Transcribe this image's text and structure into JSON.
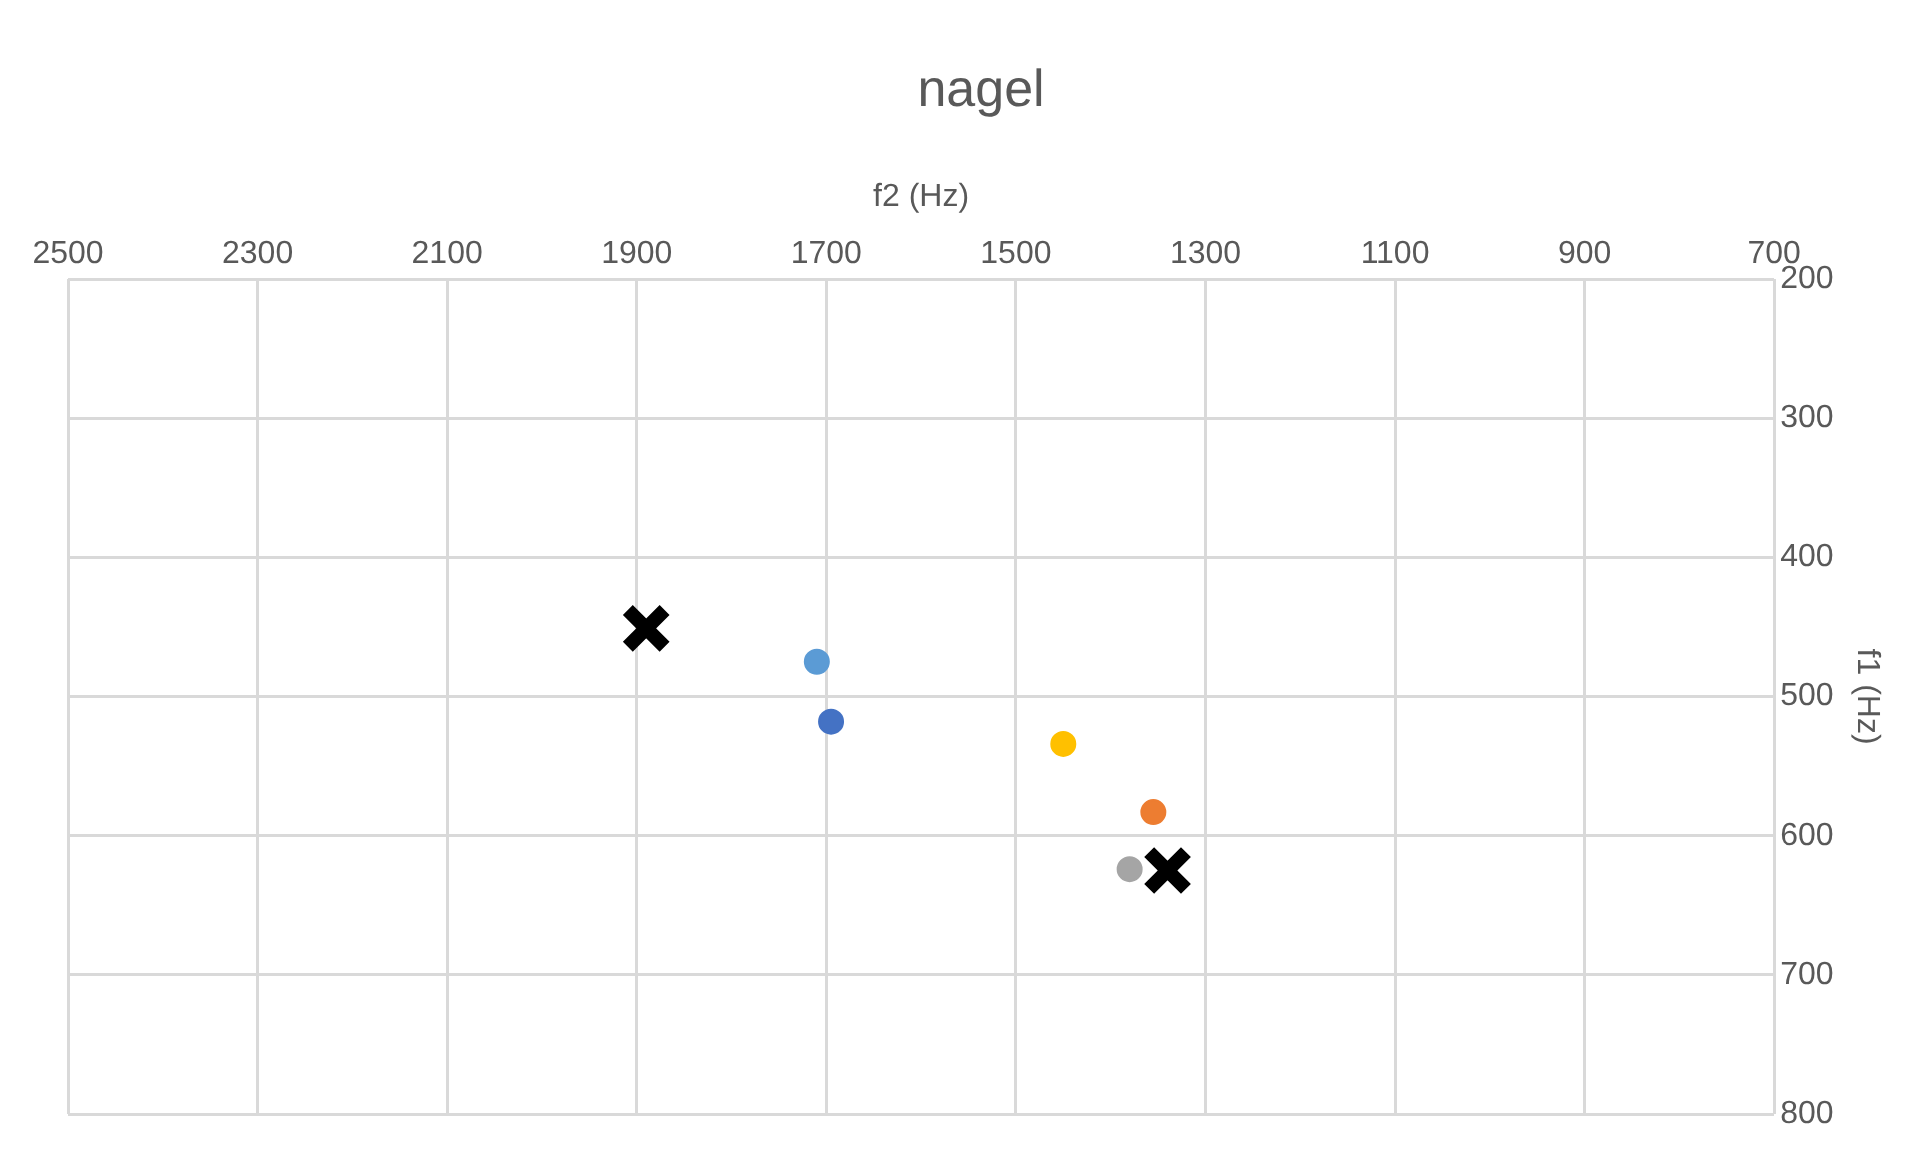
{
  "chart_data": {
    "type": "scatter",
    "title": "nagel",
    "xlabel": "f2 (Hz)",
    "ylabel": "f1 (Hz)",
    "xlim": [
      2500,
      700
    ],
    "xticks": [
      2500,
      2300,
      2100,
      1900,
      1700,
      1500,
      1300,
      1100,
      900,
      700
    ],
    "ylim": [
      800,
      200
    ],
    "yticks": [
      200,
      300,
      400,
      500,
      600,
      700,
      800
    ],
    "grid": true,
    "legend": false,
    "series": [
      {
        "color": "#5b9bd5",
        "x": [
          1710
        ],
        "values": [
          475
        ],
        "marker": "circle"
      },
      {
        "color": "#4472c4",
        "x": [
          1695
        ],
        "values": [
          518
        ],
        "marker": "circle"
      },
      {
        "color": "#ffc000",
        "x": [
          1450
        ],
        "values": [
          534
        ],
        "marker": "circle"
      },
      {
        "color": "#ed7d31",
        "x": [
          1355
        ],
        "values": [
          583
        ],
        "marker": "circle"
      },
      {
        "color": "#a5a5a5",
        "x": [
          1380
        ],
        "values": [
          624
        ],
        "marker": "circle"
      },
      {
        "color": "#000000",
        "x": [
          1890
        ],
        "values": [
          451
        ],
        "marker": "cross"
      },
      {
        "color": "#000000",
        "x": [
          1340
        ],
        "values": [
          625
        ],
        "marker": "cross"
      }
    ]
  }
}
